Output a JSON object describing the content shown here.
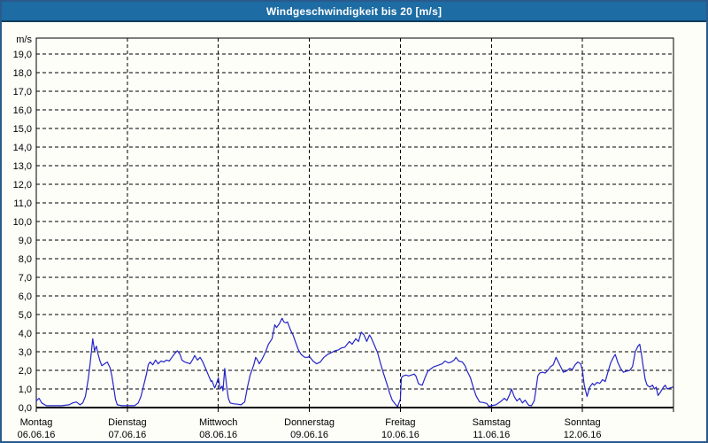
{
  "window": {
    "title": "Windgeschwindigkeit bis 20 [m/s]"
  },
  "colors": {
    "titlebar_bg": "#1d6ca3",
    "titlebar_text": "#ffffff",
    "titlebar_border": "#0d3e5e",
    "window_border": "#2a5a8c",
    "window_bg": "#fdfef8",
    "plot_border": "#000000",
    "grid": "#000000",
    "series_line": "#2424c8",
    "label_text": "#000000"
  },
  "chart_data": {
    "type": "line",
    "title": "Windgeschwindigkeit bis 20 [m/s]",
    "ylabel": "m/s",
    "grid": "dashed",
    "legend": "none",
    "y_axis": {
      "min": 0,
      "max": 20,
      "gridline_interval": 1,
      "ticks": [
        {
          "value": 19,
          "label": "19,0"
        },
        {
          "value": 18,
          "label": "18,0"
        },
        {
          "value": 17,
          "label": "17,0"
        },
        {
          "value": 16,
          "label": "16,0"
        },
        {
          "value": 15,
          "label": "15,0"
        },
        {
          "value": 14,
          "label": "14,0"
        },
        {
          "value": 13,
          "label": "13,0"
        },
        {
          "value": 12,
          "label": "12,0"
        },
        {
          "value": 11,
          "label": "11,0"
        },
        {
          "value": 10,
          "label": "10,0"
        },
        {
          "value": 9,
          "label": "9,0"
        },
        {
          "value": 8,
          "label": "8,0"
        },
        {
          "value": 7,
          "label": "7,0"
        },
        {
          "value": 6,
          "label": "6,0"
        },
        {
          "value": 5,
          "label": "5,0"
        },
        {
          "value": 4,
          "label": "4,0"
        },
        {
          "value": 3,
          "label": "3,0"
        },
        {
          "value": 2,
          "label": "2,0"
        },
        {
          "value": 1,
          "label": "1,0"
        },
        {
          "value": 0,
          "label": "0,0"
        }
      ]
    },
    "x_axis": {
      "unit": "days",
      "range_days": 7,
      "days": [
        {
          "name": "Montag",
          "date": "06.06.16"
        },
        {
          "name": "Dienstag",
          "date": "07.06.16"
        },
        {
          "name": "Mittwoch",
          "date": "08.06.16"
        },
        {
          "name": "Donnerstag",
          "date": "09.06.16"
        },
        {
          "name": "Freitag",
          "date": "10.06.16"
        },
        {
          "name": "Samstag",
          "date": "11.06.16"
        },
        {
          "name": "Sonntag",
          "date": "12.06.16"
        }
      ]
    },
    "series": [
      {
        "name": "Windgeschwindigkeit",
        "unit": "m/s",
        "color": "#2424c8",
        "points": [
          [
            0.0,
            0.35
          ],
          [
            0.03,
            0.5
          ],
          [
            0.06,
            0.25
          ],
          [
            0.11,
            0.1
          ],
          [
            0.28,
            0.1
          ],
          [
            0.36,
            0.15
          ],
          [
            0.4,
            0.25
          ],
          [
            0.44,
            0.3
          ],
          [
            0.48,
            0.15
          ],
          [
            0.51,
            0.25
          ],
          [
            0.54,
            0.6
          ],
          [
            0.57,
            1.5
          ],
          [
            0.59,
            2.3
          ],
          [
            0.61,
            3.2
          ],
          [
            0.62,
            3.7
          ],
          [
            0.64,
            3.05
          ],
          [
            0.66,
            3.3
          ],
          [
            0.68,
            2.85
          ],
          [
            0.7,
            2.5
          ],
          [
            0.72,
            2.25
          ],
          [
            0.75,
            2.35
          ],
          [
            0.78,
            2.45
          ],
          [
            0.81,
            2.15
          ],
          [
            0.83,
            1.7
          ],
          [
            0.85,
            1.1
          ],
          [
            0.87,
            0.45
          ],
          [
            0.89,
            0.15
          ],
          [
            0.94,
            0.1
          ],
          [
            1.01,
            0.1
          ],
          [
            1.08,
            0.1
          ],
          [
            1.12,
            0.25
          ],
          [
            1.15,
            0.6
          ],
          [
            1.18,
            1.2
          ],
          [
            1.21,
            1.8
          ],
          [
            1.23,
            2.3
          ],
          [
            1.25,
            2.45
          ],
          [
            1.28,
            2.3
          ],
          [
            1.31,
            2.55
          ],
          [
            1.34,
            2.35
          ],
          [
            1.37,
            2.5
          ],
          [
            1.4,
            2.45
          ],
          [
            1.43,
            2.55
          ],
          [
            1.46,
            2.5
          ],
          [
            1.49,
            2.7
          ],
          [
            1.52,
            2.9
          ],
          [
            1.55,
            3.05
          ],
          [
            1.58,
            2.85
          ],
          [
            1.6,
            2.55
          ],
          [
            1.63,
            2.45
          ],
          [
            1.66,
            2.4
          ],
          [
            1.69,
            2.35
          ],
          [
            1.72,
            2.6
          ],
          [
            1.74,
            2.8
          ],
          [
            1.77,
            2.55
          ],
          [
            1.8,
            2.7
          ],
          [
            1.83,
            2.45
          ],
          [
            1.86,
            2.1
          ],
          [
            1.89,
            1.75
          ],
          [
            1.92,
            1.4
          ],
          [
            1.93,
            1.45
          ],
          [
            1.96,
            1.05
          ],
          [
            1.98,
            1.3
          ],
          [
            2.0,
            1.6
          ],
          [
            2.02,
            1.0
          ],
          [
            2.04,
            1.15
          ],
          [
            2.05,
            0.9
          ],
          [
            2.07,
            2.1
          ],
          [
            2.09,
            1.2
          ],
          [
            2.11,
            0.5
          ],
          [
            2.13,
            0.25
          ],
          [
            2.17,
            0.2
          ],
          [
            2.21,
            0.18
          ],
          [
            2.25,
            0.15
          ],
          [
            2.29,
            0.3
          ],
          [
            2.32,
            1.1
          ],
          [
            2.35,
            1.75
          ],
          [
            2.39,
            2.3
          ],
          [
            2.41,
            2.7
          ],
          [
            2.43,
            2.55
          ],
          [
            2.45,
            2.35
          ],
          [
            2.48,
            2.6
          ],
          [
            2.5,
            2.8
          ],
          [
            2.52,
            3.0
          ],
          [
            2.55,
            3.4
          ],
          [
            2.59,
            3.7
          ],
          [
            2.62,
            4.45
          ],
          [
            2.64,
            4.3
          ],
          [
            2.67,
            4.5
          ],
          [
            2.7,
            4.8
          ],
          [
            2.72,
            4.6
          ],
          [
            2.74,
            4.55
          ],
          [
            2.76,
            4.6
          ],
          [
            2.79,
            4.2
          ],
          [
            2.82,
            3.9
          ],
          [
            2.85,
            3.5
          ],
          [
            2.88,
            3.1
          ],
          [
            2.91,
            2.85
          ],
          [
            2.95,
            2.7
          ],
          [
            2.98,
            2.7
          ],
          [
            3.0,
            2.75
          ],
          [
            3.04,
            2.5
          ],
          [
            3.08,
            2.35
          ],
          [
            3.12,
            2.45
          ],
          [
            3.16,
            2.7
          ],
          [
            3.2,
            2.85
          ],
          [
            3.24,
            2.95
          ],
          [
            3.28,
            3.05
          ],
          [
            3.32,
            3.1
          ],
          [
            3.35,
            3.2
          ],
          [
            3.39,
            3.25
          ],
          [
            3.44,
            3.55
          ],
          [
            3.47,
            3.4
          ],
          [
            3.51,
            3.7
          ],
          [
            3.54,
            3.55
          ],
          [
            3.57,
            4.05
          ],
          [
            3.6,
            3.9
          ],
          [
            3.63,
            3.55
          ],
          [
            3.66,
            3.9
          ],
          [
            3.68,
            3.75
          ],
          [
            3.71,
            3.4
          ],
          [
            3.75,
            2.95
          ],
          [
            3.78,
            2.4
          ],
          [
            3.81,
            1.9
          ],
          [
            3.85,
            1.3
          ],
          [
            3.88,
            0.8
          ],
          [
            3.91,
            0.4
          ],
          [
            3.95,
            0.15
          ],
          [
            3.97,
            0.05
          ],
          [
            4.0,
            0.45
          ],
          [
            4.01,
            1.6
          ],
          [
            4.03,
            1.7
          ],
          [
            4.06,
            1.75
          ],
          [
            4.09,
            1.7
          ],
          [
            4.12,
            1.75
          ],
          [
            4.15,
            1.8
          ],
          [
            4.17,
            1.7
          ],
          [
            4.2,
            1.27
          ],
          [
            4.24,
            1.2
          ],
          [
            4.27,
            1.6
          ],
          [
            4.3,
            1.95
          ],
          [
            4.34,
            2.1
          ],
          [
            4.37,
            2.2
          ],
          [
            4.4,
            2.25
          ],
          [
            4.43,
            2.3
          ],
          [
            4.46,
            2.35
          ],
          [
            4.49,
            2.5
          ],
          [
            4.53,
            2.4
          ],
          [
            4.56,
            2.45
          ],
          [
            4.59,
            2.55
          ],
          [
            4.61,
            2.7
          ],
          [
            4.64,
            2.5
          ],
          [
            4.68,
            2.45
          ],
          [
            4.71,
            2.25
          ],
          [
            4.73,
            2.0
          ],
          [
            4.77,
            1.6
          ],
          [
            4.8,
            1.1
          ],
          [
            4.83,
            0.65
          ],
          [
            4.87,
            0.3
          ],
          [
            4.91,
            0.27
          ],
          [
            4.95,
            0.22
          ],
          [
            4.97,
            0.07
          ],
          [
            5.0,
            0.1
          ],
          [
            5.05,
            0.15
          ],
          [
            5.08,
            0.25
          ],
          [
            5.11,
            0.35
          ],
          [
            5.14,
            0.5
          ],
          [
            5.17,
            0.38
          ],
          [
            5.2,
            0.7
          ],
          [
            5.22,
            1.0
          ],
          [
            5.25,
            0.6
          ],
          [
            5.28,
            0.35
          ],
          [
            5.31,
            0.5
          ],
          [
            5.34,
            0.25
          ],
          [
            5.37,
            0.4
          ],
          [
            5.41,
            0.12
          ],
          [
            5.44,
            0.1
          ],
          [
            5.47,
            0.35
          ],
          [
            5.49,
            1.0
          ],
          [
            5.51,
            1.7
          ],
          [
            5.53,
            1.85
          ],
          [
            5.56,
            1.9
          ],
          [
            5.59,
            1.85
          ],
          [
            5.62,
            2.0
          ],
          [
            5.65,
            2.2
          ],
          [
            5.68,
            2.3
          ],
          [
            5.71,
            2.7
          ],
          [
            5.74,
            2.4
          ],
          [
            5.77,
            2.1
          ],
          [
            5.79,
            1.9
          ],
          [
            5.82,
            1.95
          ],
          [
            5.86,
            2.1
          ],
          [
            5.89,
            2.05
          ],
          [
            5.92,
            2.3
          ],
          [
            5.95,
            2.45
          ],
          [
            5.98,
            2.35
          ],
          [
            6.0,
            2.0
          ],
          [
            6.02,
            1.2
          ],
          [
            6.05,
            0.6
          ],
          [
            6.08,
            1.1
          ],
          [
            6.11,
            1.3
          ],
          [
            6.13,
            1.2
          ],
          [
            6.16,
            1.35
          ],
          [
            6.19,
            1.3
          ],
          [
            6.22,
            1.5
          ],
          [
            6.25,
            1.4
          ],
          [
            6.28,
            1.9
          ],
          [
            6.31,
            2.4
          ],
          [
            6.34,
            2.7
          ],
          [
            6.36,
            2.85
          ],
          [
            6.39,
            2.4
          ],
          [
            6.42,
            2.1
          ],
          [
            6.45,
            1.9
          ],
          [
            6.48,
            1.95
          ],
          [
            6.52,
            2.0
          ],
          [
            6.55,
            2.2
          ],
          [
            6.58,
            3.0
          ],
          [
            6.61,
            3.3
          ],
          [
            6.63,
            3.4
          ],
          [
            6.65,
            2.8
          ],
          [
            6.67,
            2.1
          ],
          [
            6.69,
            1.5
          ],
          [
            6.71,
            1.2
          ],
          [
            6.74,
            1.1
          ],
          [
            6.77,
            1.2
          ],
          [
            6.79,
            1.0
          ],
          [
            6.81,
            1.1
          ],
          [
            6.83,
            0.65
          ],
          [
            6.86,
            0.85
          ],
          [
            6.89,
            1.1
          ],
          [
            6.91,
            1.2
          ],
          [
            6.93,
            1.0
          ],
          [
            6.96,
            1.05
          ],
          [
            6.99,
            1.1
          ]
        ]
      }
    ]
  }
}
